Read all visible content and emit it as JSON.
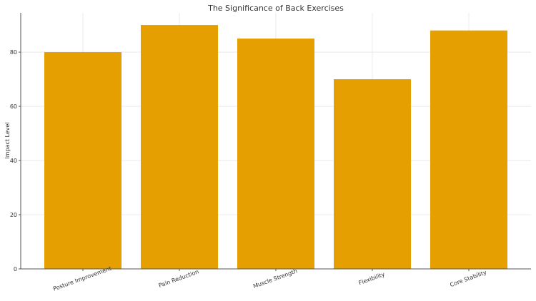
{
  "chart_data": {
    "type": "bar",
    "title": "The Significance of Back Exercises",
    "xlabel": "",
    "ylabel": "Impact Level",
    "categories": [
      "Posture Improvement",
      "Pain Reduction",
      "Muscle Strength",
      "Flexibility",
      "Core Stability"
    ],
    "values": [
      80,
      90,
      85,
      70,
      88
    ],
    "ylim": [
      0,
      94.5
    ],
    "yticks": [
      0,
      20,
      40,
      60,
      80
    ],
    "grid": true,
    "legend": null,
    "bar_color": "#E69F00",
    "xtick_rotation": -20
  }
}
